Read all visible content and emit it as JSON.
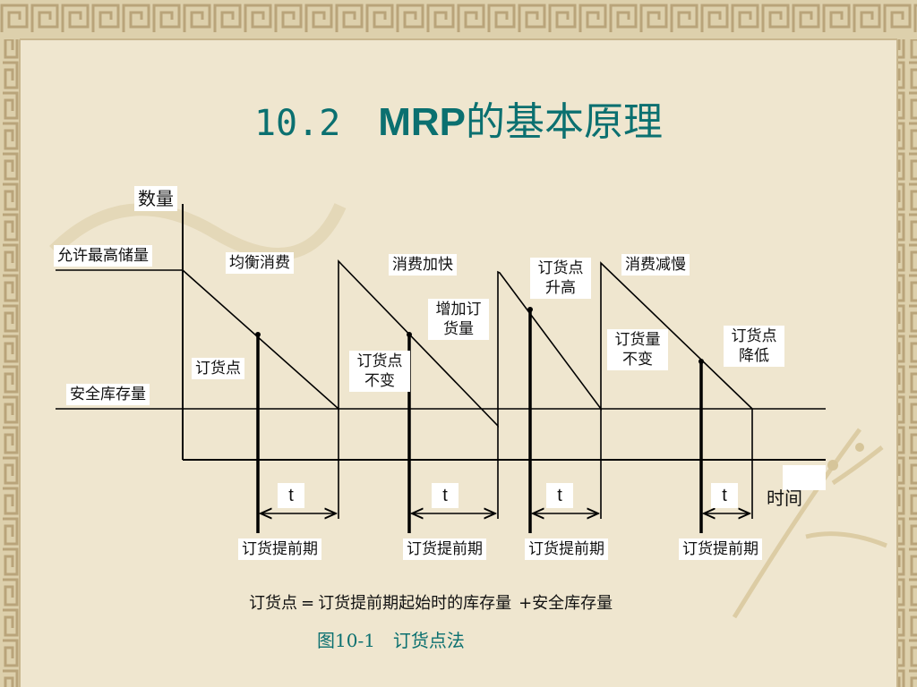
{
  "slide": {
    "title_number": "10.2",
    "title_text_latin": "MRP",
    "title_text_cn": "的基本原理"
  },
  "diagram": {
    "y_axis_label": "数量",
    "x_axis_label": "时间",
    "max_stock_label": "允许最高储量",
    "safety_stock_label": "安全库存量",
    "phases": [
      {
        "name": "均衡消费",
        "reorder_label": "订货点",
        "lead_time_symbol": "t",
        "lead_time_label": "订货提前期"
      },
      {
        "name": "消费加快",
        "reorder_label": "订货点不变",
        "note": "增加订货量",
        "lead_time_symbol": "t",
        "lead_time_label": "订货提前期"
      },
      {
        "name": "订货点升高",
        "lead_time_symbol": "t",
        "lead_time_label": "订货提前期"
      },
      {
        "name": "消费减慢",
        "reorder_label": "订货点降低",
        "note": "订货量不变",
        "lead_time_symbol": "t",
        "lead_time_label": "订货提前期"
      }
    ],
    "formula_left": "订货点",
    "formula_eq": "=",
    "formula_right": "订货提前期起始时的库存量",
    "formula_plus": "+安全库存量",
    "caption": "图10-1　订货点法"
  }
}
